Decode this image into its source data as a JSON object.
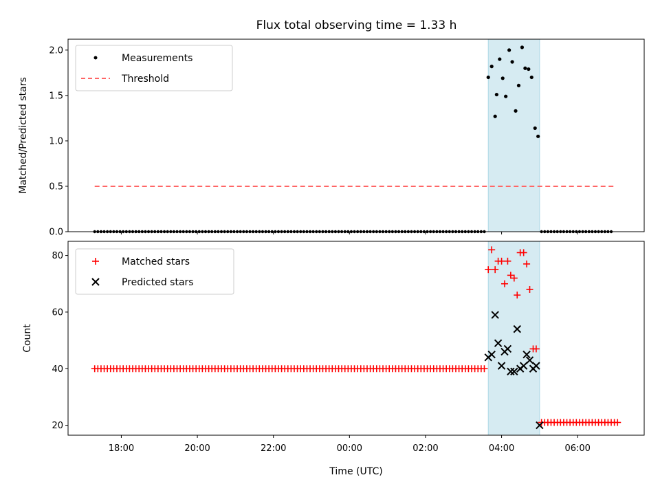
{
  "chart_data": {
    "title": "Flux total observing time = 1.33 h",
    "xlabel": "Time (UTC)",
    "x_tick_labels": [
      "18:00",
      "20:00",
      "22:00",
      "00:00",
      "02:00",
      "04:00",
      "06:00"
    ],
    "x_tick_hours": [
      18,
      20,
      22,
      24,
      26,
      28,
      30
    ],
    "xlim": [
      16.6,
      31.75
    ],
    "span": {
      "start": 27.65,
      "end": 29.0,
      "color": "#add8e6"
    },
    "panels": [
      {
        "type": "scatter",
        "ylabel": "Matched/Predicted stars",
        "ylim": [
          0,
          2.12
        ],
        "y_ticks": [
          0.0,
          0.5,
          1.0,
          1.5,
          2.0
        ],
        "y_tick_labels": [
          "0.0",
          "0.5",
          "1.0",
          "1.5",
          "2.0"
        ],
        "legend": {
          "placement": "top-left",
          "entries": [
            "Measurements",
            "Threshold"
          ]
        },
        "threshold": {
          "value": 0.5,
          "x_range": [
            17.3,
            31.0
          ],
          "color": "#ff6666"
        },
        "measurements_color": "#000000",
        "measurements_flat": {
          "value": 0.0,
          "ranges": [
            [
              17.3,
              27.55,
              0.0833
            ],
            [
              29.05,
              30.95,
              0.0833
            ]
          ]
        },
        "measurements_event": {
          "x": [
            27.65,
            27.74,
            27.83,
            27.87,
            27.95,
            28.03,
            28.11,
            28.2,
            28.28,
            28.37,
            28.45,
            28.54,
            28.62,
            28.71,
            28.79,
            28.88,
            28.96
          ],
          "y": [
            1.7,
            1.82,
            1.27,
            1.51,
            1.9,
            1.69,
            1.49,
            2.0,
            1.87,
            1.33,
            1.61,
            2.03,
            1.8,
            1.79,
            1.7,
            1.14,
            1.05
          ]
        }
      },
      {
        "type": "scatter",
        "ylabel": "Count",
        "ylim": [
          16.5,
          85
        ],
        "y_ticks": [
          20,
          40,
          60,
          80
        ],
        "y_tick_labels": [
          "20",
          "40",
          "60",
          "80"
        ],
        "legend": {
          "placement": "top-left",
          "entries": [
            "Matched stars",
            "Predicted stars"
          ]
        },
        "matched_color": "#ff0000",
        "predicted_color": "#000000",
        "matched_flat": [
          {
            "value": 40,
            "range": [
              17.3,
              27.55,
              0.0833
            ]
          },
          {
            "value": 21,
            "range": [
              29.05,
              31.05,
              0.0833
            ]
          }
        ],
        "matched_event": {
          "x": [
            27.65,
            27.74,
            27.83,
            27.91,
            28.0,
            28.08,
            28.16,
            28.24,
            28.33,
            28.41,
            28.49,
            28.58,
            28.66,
            28.74,
            28.83,
            28.91
          ],
          "y": [
            75,
            82,
            75,
            78,
            78,
            70,
            78,
            73,
            72,
            66,
            81,
            81,
            77,
            68,
            47,
            47
          ]
        },
        "predicted_event": {
          "x": [
            27.65,
            27.74,
            27.83,
            27.91,
            28.0,
            28.08,
            28.16,
            28.24,
            28.33,
            28.41,
            28.49,
            28.58,
            28.66,
            28.74,
            28.83,
            28.91,
            29.0
          ],
          "y": [
            44,
            45,
            59,
            49,
            41,
            46,
            47,
            39,
            39,
            54,
            40,
            41,
            45,
            43,
            40,
            41,
            20
          ]
        }
      }
    ]
  }
}
